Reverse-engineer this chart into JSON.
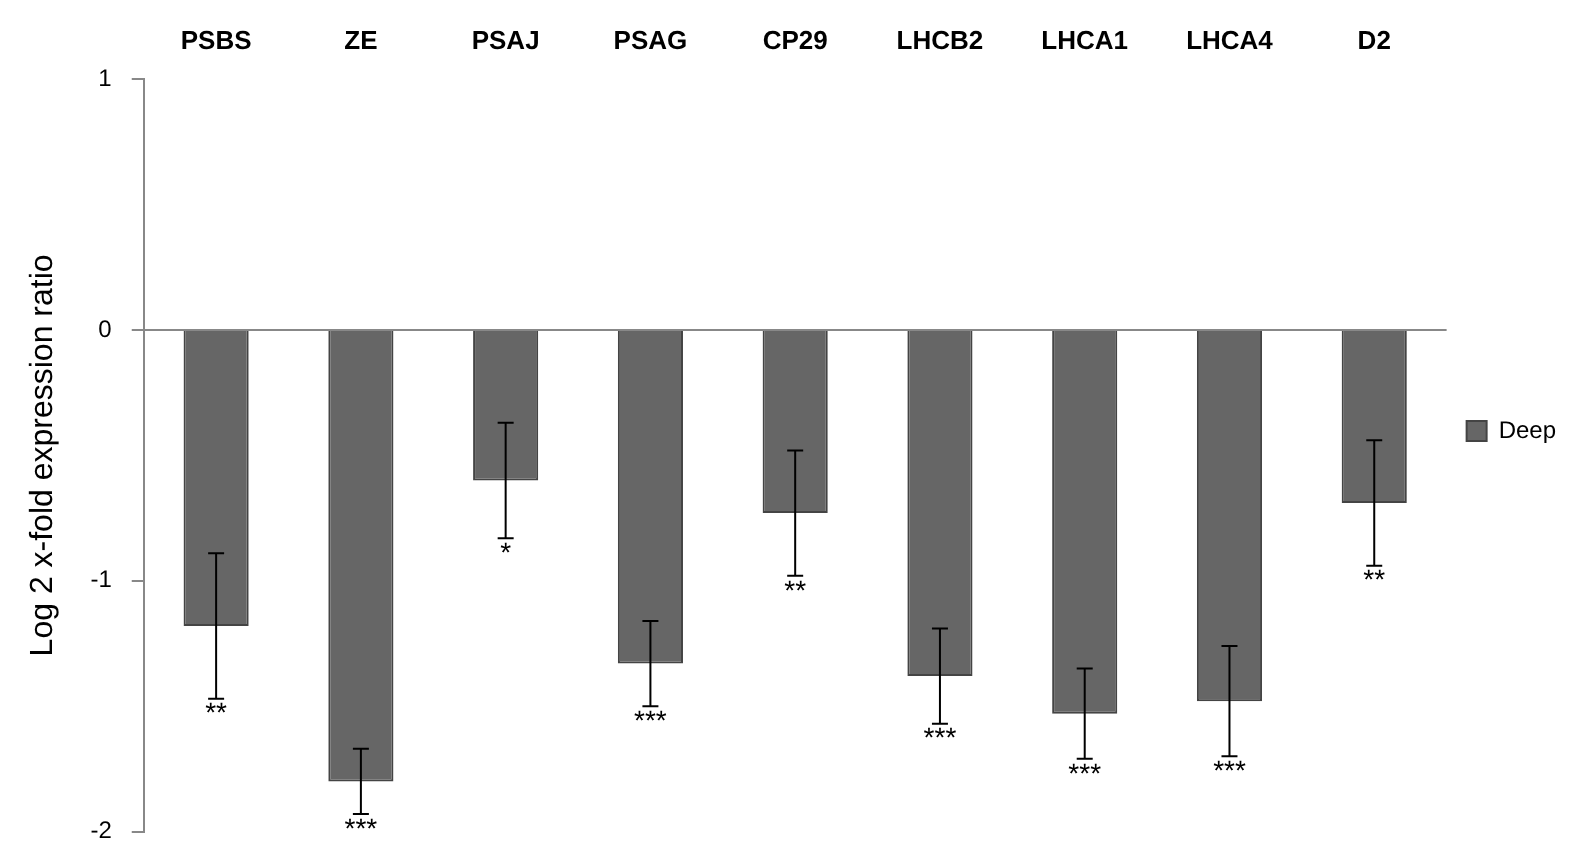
{
  "chart_data": {
    "type": "bar",
    "ylabel": "Log 2 x-fold expression ratio",
    "categories": [
      "PSBS",
      "ZE",
      "PSAJ",
      "PSAG",
      "CP29",
      "LHCB2",
      "LHCA1",
      "LHCA4",
      "D2"
    ],
    "series": [
      {
        "name": "Deep",
        "color": "#666666",
        "values": [
          -1.18,
          -1.8,
          -0.6,
          -1.33,
          -0.73,
          -1.38,
          -1.53,
          -1.48,
          -0.69
        ],
        "errors": [
          0.29,
          0.13,
          0.23,
          0.17,
          0.25,
          0.19,
          0.18,
          0.22,
          0.25
        ]
      }
    ],
    "ylim": [
      -2,
      1
    ],
    "yticks": [
      -2,
      -1,
      0,
      1
    ],
    "legend": "right",
    "annotations": [
      {
        "text": "**",
        "x": "PSBS",
        "y": -1.47
      },
      {
        "text": "***",
        "x": "ZE",
        "y": -1.93
      },
      {
        "text": "*",
        "x": "PSAJ",
        "y": -0.83
      },
      {
        "text": "***",
        "x": "PSAG",
        "y": -1.5
      },
      {
        "text": "**",
        "x": "CP29",
        "y": -0.98
      },
      {
        "text": "***",
        "x": "LHCB2",
        "y": -1.57
      },
      {
        "text": "***",
        "x": "LHCA1",
        "y": -1.71
      },
      {
        "text": "***",
        "x": "LHCA4",
        "y": -1.7
      },
      {
        "text": "**",
        "x": "D2",
        "y": -0.94
      }
    ]
  }
}
